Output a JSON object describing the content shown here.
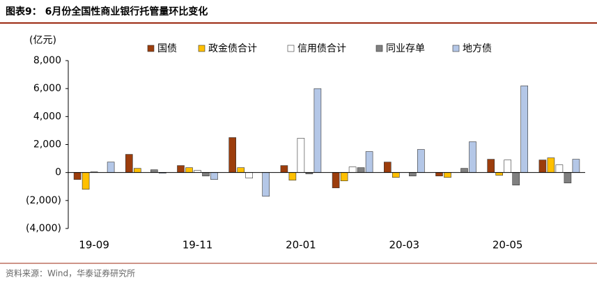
{
  "header": {
    "title": "图表9： 6月份全国性商业银行托管量环比变化"
  },
  "chart_data": {
    "type": "bar",
    "unit_label": "(亿元)",
    "categories": [
      "19-09",
      null,
      "19-11",
      null,
      "20-01",
      null,
      "20-03",
      null,
      "20-05",
      null
    ],
    "series": [
      {
        "name": "国债",
        "color": "#9c3d0c",
        "values": [
          -500,
          1300,
          500,
          2500,
          500,
          -1100,
          750,
          -250,
          950,
          900
        ]
      },
      {
        "name": "政金债合计",
        "color": "#ffc000",
        "values": [
          -1200,
          300,
          350,
          350,
          -550,
          -600,
          -350,
          -350,
          -200,
          1050
        ]
      },
      {
        "name": "信用债合计",
        "color": "#ffffff",
        "values": [
          50,
          0,
          150,
          -400,
          2450,
          400,
          0,
          0,
          900,
          550
        ]
      },
      {
        "name": "同业存单",
        "color": "#808080",
        "values": [
          0,
          200,
          -250,
          0,
          -100,
          350,
          -250,
          300,
          -900,
          -750
        ]
      },
      {
        "name": "地方债",
        "color": "#b4c7e7",
        "values": [
          750,
          -50,
          -500,
          -1700,
          6000,
          1500,
          1650,
          2200,
          6200,
          950
        ]
      }
    ],
    "ylim": [
      -4000,
      8000
    ],
    "yticks": [
      {
        "value": -4000,
        "label": "(4,000)"
      },
      {
        "value": -2000,
        "label": "(2,000)"
      },
      0,
      {
        "value": 2000,
        "label": "2,000"
      },
      {
        "value": 4000,
        "label": "4,000"
      },
      {
        "value": 6000,
        "label": "6,000"
      },
      {
        "value": 8000,
        "label": "8,000"
      }
    ],
    "grid": false,
    "legend": "top"
  },
  "footer": {
    "source": "资料来源：Wind，华泰证券研究所"
  }
}
